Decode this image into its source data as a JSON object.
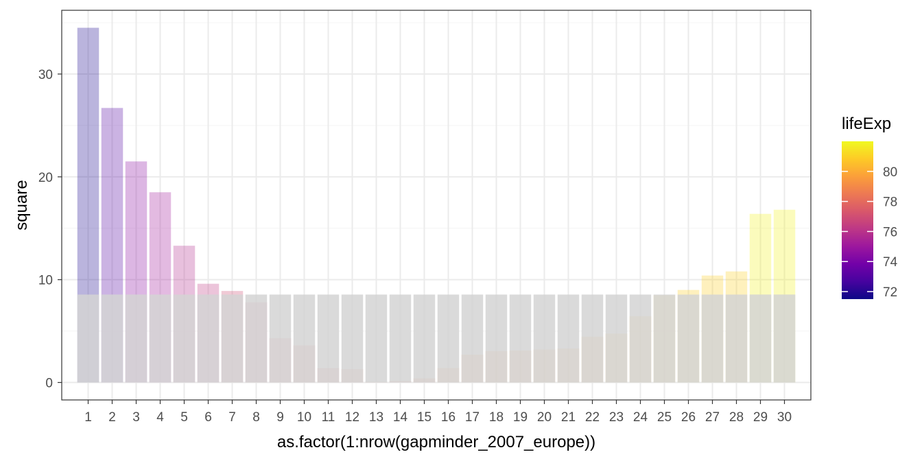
{
  "chart_data": {
    "type": "bar",
    "xlabel": "as.factor(1:nrow(gapminder_2007_europe))",
    "ylabel": "square",
    "categories": [
      "1",
      "2",
      "3",
      "4",
      "5",
      "6",
      "7",
      "8",
      "9",
      "10",
      "11",
      "12",
      "13",
      "14",
      "15",
      "16",
      "17",
      "18",
      "19",
      "20",
      "21",
      "22",
      "23",
      "24",
      "25",
      "26",
      "27",
      "28",
      "29",
      "30"
    ],
    "values": [
      34.5,
      26.7,
      21.5,
      18.5,
      13.3,
      9.6,
      8.9,
      7.8,
      4.3,
      3.6,
      1.4,
      1.3,
      0.05,
      0.15,
      0.4,
      1.4,
      2.7,
      3.05,
      3.1,
      3.2,
      3.3,
      4.45,
      4.75,
      6.45,
      8.5,
      9.0,
      10.4,
      10.8,
      16.4,
      16.8
    ],
    "color_values": [
      71.8,
      73.0,
      74.5,
      75.2,
      75.8,
      76.3,
      76.9,
      77.0,
      77.3,
      77.5,
      77.9,
      78.1,
      78.3,
      78.4,
      78.6,
      79.0,
      79.2,
      79.4,
      79.4,
      79.5,
      79.5,
      79.8,
      80.2,
      80.5,
      80.7,
      80.9,
      80.9,
      81.0,
      81.8,
      81.8
    ],
    "reference_value": 8.55,
    "ylim": [
      -1.7,
      36.2
    ],
    "y_ticks": [
      0,
      10,
      20,
      30
    ],
    "grid": true,
    "legend": {
      "title": "lifeExp",
      "placement": "right",
      "range": [
        71.5,
        82.0
      ],
      "ticks": [
        72,
        74,
        76,
        78,
        80
      ],
      "palette": [
        "#0d0887",
        "#46039f",
        "#7201a8",
        "#9c179e",
        "#bd3786",
        "#d8576b",
        "#ed7953",
        "#fb9f3a",
        "#fdca26",
        "#f0f921"
      ]
    },
    "colors": {
      "reference_bar": "#d4d4d4",
      "panel_border": "#333333",
      "grid_major": "#ebebeb",
      "grid_minor": "#f4f4f4"
    }
  }
}
